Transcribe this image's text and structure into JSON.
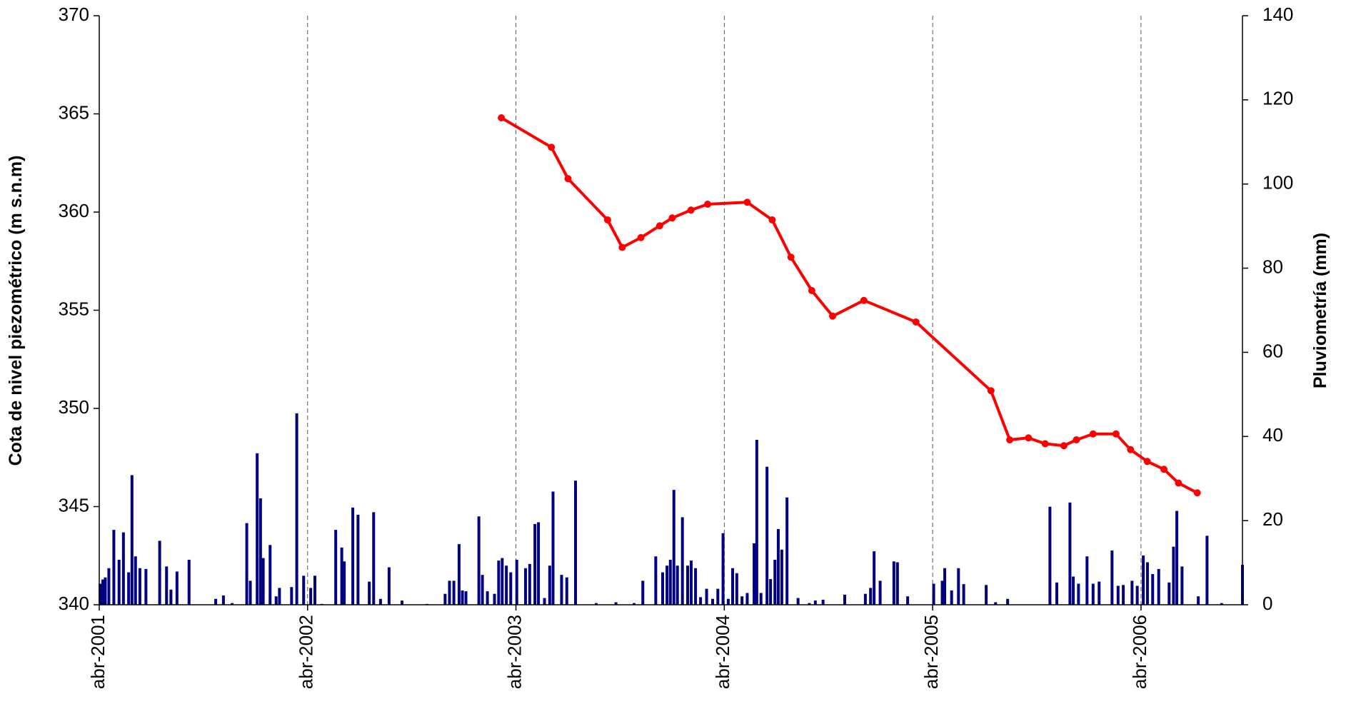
{
  "chart_data": {
    "type": "combo",
    "y_label": "Cota de nivel piezométrico (m s.n.m)",
    "y2_label": "Pluviometría (mm)",
    "xlim": [
      2001.25,
      2006.737
    ],
    "xticks": [
      {
        "value": 2001.25,
        "label": "abr-2001"
      },
      {
        "value": 2002.25,
        "label": "abr-2002"
      },
      {
        "value": 2003.25,
        "label": "abr-2003"
      },
      {
        "value": 2004.25,
        "label": "abr-2004"
      },
      {
        "value": 2005.25,
        "label": "abr-2005"
      },
      {
        "value": 2006.25,
        "label": "abr-2006"
      }
    ],
    "ylim": [
      340,
      370
    ],
    "yticks": [
      340,
      345,
      350,
      355,
      360,
      365,
      370
    ],
    "y2lim": [
      0,
      140
    ],
    "y2ticks": [
      0,
      20,
      40,
      60,
      80,
      100,
      120,
      140
    ],
    "grid": "x-dashed",
    "series": [
      {
        "type": "bar",
        "axis": "y2",
        "color": "#000080",
        "x": [
          2001.254,
          2001.267,
          2001.279,
          2001.296,
          2001.32,
          2001.345,
          2001.366,
          2001.391,
          2001.407,
          2001.424,
          2001.445,
          2001.474,
          2001.54,
          2001.573,
          2001.594,
          2001.623,
          2001.681,
          2001.809,
          2001.846,
          2001.888,
          2001.958,
          2001.975,
          2002.008,
          2002.024,
          2002.037,
          2002.07,
          2002.099,
          2002.115,
          2002.173,
          2002.198,
          2002.231,
          2002.265,
          2002.285,
          2002.318,
          2002.385,
          2002.414,
          2002.426,
          2002.467,
          2002.492,
          2002.546,
          2002.567,
          2002.6,
          2002.641,
          2002.703,
          2002.824,
          2002.91,
          2002.931,
          2002.952,
          2002.977,
          2002.993,
          2003.01,
          2003.072,
          2003.089,
          2003.113,
          2003.147,
          2003.167,
          2003.184,
          2003.204,
          2003.225,
          2003.254,
          2003.296,
          2003.316,
          2003.341,
          2003.358,
          2003.387,
          2003.412,
          2003.428,
          2003.469,
          2003.494,
          2003.536,
          2003.635,
          2003.73,
          2003.817,
          2003.859,
          2003.921,
          2003.954,
          2003.975,
          2003.991,
          2004.008,
          2004.025,
          2004.049,
          2004.074,
          2004.091,
          2004.112,
          2004.136,
          2004.165,
          2004.194,
          2004.219,
          2004.244,
          2004.269,
          2004.29,
          2004.31,
          2004.335,
          2004.36,
          2004.393,
          2004.406,
          2004.426,
          2004.455,
          2004.472,
          2004.493,
          2004.509,
          2004.526,
          2004.551,
          2004.604,
          2004.658,
          2004.687,
          2004.724,
          2004.828,
          2004.927,
          2004.952,
          2004.969,
          2004.998,
          2005.064,
          2005.081,
          2005.13,
          2005.255,
          2005.296,
          2005.308,
          2005.341,
          2005.374,
          2005.399,
          2005.507,
          2005.552,
          2005.61,
          2005.813,
          2005.846,
          2005.909,
          2005.925,
          2005.95,
          2005.991,
          2006.02,
          2006.049,
          2006.111,
          2006.14,
          2006.165,
          2006.207,
          2006.232,
          2006.261,
          2006.281,
          2006.306,
          2006.335,
          2006.385,
          2006.406,
          2006.422,
          2006.447,
          2006.525,
          2006.567,
          2006.637,
          2006.737
        ],
        "values": [
          5,
          6,
          6.5,
          8.7,
          17.8,
          10.7,
          17.2,
          7.7,
          30.8,
          11.5,
          8.7,
          8.5,
          15.2,
          9.1,
          3.6,
          7.9,
          10.7,
          1.4,
          2.2,
          0.4,
          19.4,
          5.7,
          36,
          25.3,
          11.1,
          14.2,
          2,
          4,
          4.2,
          45.5,
          6.9,
          4,
          6.9,
          0.2,
          17.8,
          13.6,
          10.3,
          23.1,
          21.4,
          5.5,
          22,
          1.4,
          8.9,
          1,
          0.2,
          2.6,
          5.7,
          5.7,
          14.4,
          3.4,
          3.2,
          21,
          7.1,
          3.2,
          2.6,
          10.5,
          11.1,
          9.3,
          7.7,
          10.7,
          8.7,
          9.7,
          19.2,
          19.6,
          1.6,
          9.3,
          26.9,
          7.1,
          6.5,
          29.5,
          0.4,
          0.6,
          0.4,
          5.7,
          11.5,
          7.7,
          9.3,
          10.7,
          27.3,
          9.3,
          20.8,
          9.3,
          10.5,
          8.7,
          1.8,
          3.8,
          1.4,
          3.8,
          17,
          1.4,
          8.7,
          7.5,
          2,
          2.8,
          14.6,
          39.2,
          2.8,
          32.8,
          6.1,
          10.7,
          18,
          13.1,
          25.5,
          1.6,
          0.4,
          1,
          1.2,
          2.4,
          2.6,
          4,
          12.7,
          5.7,
          10.3,
          10.1,
          2,
          5,
          5.7,
          8.7,
          3.4,
          8.7,
          4.9,
          4.7,
          0.6,
          1.4,
          23.3,
          5.3,
          24.3,
          6.7,
          5,
          11.5,
          5,
          5.5,
          12.9,
          4.5,
          4.7,
          5.7,
          4.5,
          11.7,
          10.1,
          7.3,
          8.5,
          5.3,
          13.8,
          22.3,
          9.1,
          2,
          16.4,
          0.4,
          9.5
        ]
      },
      {
        "type": "line",
        "axis": "y",
        "color": "#ff0000",
        "x": [
          2003.18,
          2003.42,
          2003.5,
          2003.69,
          2003.76,
          2003.85,
          2003.94,
          2004.0,
          2004.09,
          2004.17,
          2004.36,
          2004.48,
          2004.57,
          2004.67,
          2004.77,
          2004.92,
          2005.17,
          2005.53,
          2005.62,
          2005.71,
          2005.79,
          2005.88,
          2005.94,
          2006.02,
          2006.13,
          2006.2,
          2006.28,
          2006.36,
          2006.43,
          2006.52
        ],
        "values": [
          364.8,
          363.3,
          361.7,
          359.6,
          358.2,
          358.7,
          359.3,
          359.7,
          360.1,
          360.4,
          360.5,
          359.6,
          357.7,
          356.0,
          354.7,
          355.5,
          354.4,
          350.9,
          348.4,
          348.5,
          348.2,
          348.1,
          348.4,
          348.7,
          348.7,
          347.9,
          347.3,
          346.9,
          346.2,
          345.7
        ]
      }
    ]
  }
}
